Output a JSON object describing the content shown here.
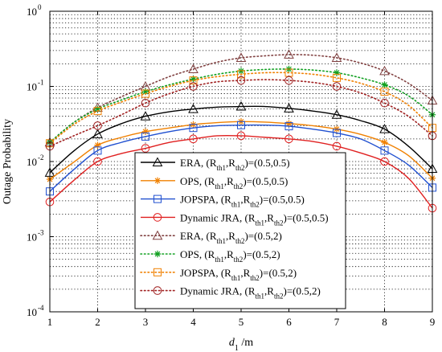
{
  "chart_data": {
    "type": "line",
    "xlabel": "d1 /m",
    "xlabel_main": "d",
    "xlabel_sub": "1",
    "xlabel_unit": " /m",
    "ylabel": "Outage Probability",
    "xlim": [
      1,
      9
    ],
    "ylim": [
      0.0001,
      1
    ],
    "yscale": "log",
    "grid": true,
    "legend_placement": "lower-center",
    "x_ticks": [
      "1",
      "2",
      "3",
      "4",
      "5",
      "6",
      "7",
      "8",
      "9"
    ],
    "y_ticks": [
      {
        "base": "10",
        "exp": "0",
        "value": 1
      },
      {
        "base": "10",
        "exp": "-1",
        "value": 0.1
      },
      {
        "base": "10",
        "exp": "-2",
        "value": 0.01
      },
      {
        "base": "10",
        "exp": "-3",
        "value": 0.001
      },
      {
        "base": "10",
        "exp": "-4",
        "value": 0.0001
      }
    ],
    "series": [
      {
        "name": "ERA",
        "params": "(0.5,0.5)",
        "color": "#000000",
        "style": "solid",
        "marker": "triangle",
        "x": [
          1,
          1.5,
          2,
          2.5,
          3,
          3.5,
          4,
          4.5,
          5,
          5.5,
          6,
          6.5,
          7,
          7.5,
          8,
          8.5,
          9
        ],
        "y": [
          0.0071,
          0.0138,
          0.0232,
          0.032,
          0.04,
          0.046,
          0.05,
          0.053,
          0.054,
          0.054,
          0.051,
          0.047,
          0.042,
          0.035,
          0.027,
          0.016,
          0.008
        ]
      },
      {
        "name": "OPS",
        "params": "(0.5,0.5)",
        "color": "#f08000",
        "style": "solid",
        "marker": "star",
        "x": [
          1,
          1.5,
          2,
          2.5,
          3,
          3.5,
          4,
          4.5,
          5,
          5.5,
          6,
          6.5,
          7,
          7.5,
          8,
          8.5,
          9
        ],
        "y": [
          0.0058,
          0.0098,
          0.0165,
          0.021,
          0.025,
          0.028,
          0.031,
          0.033,
          0.034,
          0.0335,
          0.032,
          0.03,
          0.027,
          0.023,
          0.018,
          0.012,
          0.006
        ]
      },
      {
        "name": "JOPSPA",
        "params": "(0.5,0.5)",
        "color": "#2050d0",
        "style": "solid",
        "marker": "square",
        "x": [
          1,
          1.5,
          2,
          2.5,
          3,
          3.5,
          4,
          4.5,
          5,
          5.5,
          6,
          6.5,
          7,
          7.5,
          8,
          8.5,
          9
        ],
        "y": [
          0.004,
          0.0078,
          0.014,
          0.018,
          0.0215,
          0.025,
          0.028,
          0.03,
          0.0305,
          0.0305,
          0.0295,
          0.027,
          0.024,
          0.02,
          0.014,
          0.009,
          0.0045
        ]
      },
      {
        "name": "Dynamic JRA",
        "params": "(0.5,0.5)",
        "color": "#e02020",
        "style": "solid",
        "marker": "circle",
        "x": [
          1,
          1.5,
          2,
          2.5,
          3,
          3.5,
          4,
          4.5,
          5,
          5.5,
          6,
          6.5,
          7,
          7.5,
          8,
          8.5,
          9
        ],
        "y": [
          0.0029,
          0.0056,
          0.01,
          0.0128,
          0.015,
          0.018,
          0.02,
          0.022,
          0.022,
          0.021,
          0.02,
          0.0185,
          0.016,
          0.013,
          0.01,
          0.006,
          0.0024
        ]
      },
      {
        "name": "ERA",
        "params": "(0.5,2)",
        "color": "#804040",
        "style": "dotted",
        "marker": "triangle",
        "x": [
          1,
          1.5,
          2,
          2.5,
          3,
          3.5,
          4,
          4.5,
          5,
          5.5,
          6,
          6.5,
          7,
          7.5,
          8,
          8.5,
          9
        ],
        "y": [
          0.018,
          0.033,
          0.052,
          0.073,
          0.1,
          0.135,
          0.17,
          0.21,
          0.24,
          0.255,
          0.265,
          0.26,
          0.24,
          0.205,
          0.16,
          0.11,
          0.065
        ]
      },
      {
        "name": "OPS",
        "params": "(0.5,2)",
        "color": "#10a020",
        "style": "dotted",
        "marker": "star",
        "x": [
          1,
          1.5,
          2,
          2.5,
          3,
          3.5,
          4,
          4.5,
          5,
          5.5,
          6,
          6.5,
          7,
          7.5,
          8,
          8.5,
          9
        ],
        "y": [
          0.018,
          0.033,
          0.05,
          0.066,
          0.085,
          0.105,
          0.125,
          0.145,
          0.16,
          0.168,
          0.17,
          0.165,
          0.152,
          0.13,
          0.105,
          0.075,
          0.042
        ]
      },
      {
        "name": "JOPSPA",
        "params": "(0.5,2)",
        "color": "#f08000",
        "style": "dotted",
        "marker": "square",
        "x": [
          1,
          1.5,
          2,
          2.5,
          3,
          3.5,
          4,
          4.5,
          5,
          5.5,
          6,
          6.5,
          7,
          7.5,
          8,
          8.5,
          9
        ],
        "y": [
          0.0175,
          0.031,
          0.047,
          0.062,
          0.08,
          0.1,
          0.12,
          0.135,
          0.145,
          0.152,
          0.152,
          0.145,
          0.13,
          0.11,
          0.085,
          0.056,
          0.028
        ]
      },
      {
        "name": "Dynamic JRA",
        "params": "(0.5,2)",
        "color": "#a02020",
        "style": "dotted",
        "marker": "circle",
        "x": [
          1,
          1.5,
          2,
          2.5,
          3,
          3.5,
          4,
          4.5,
          5,
          5.5,
          6,
          6.5,
          7,
          7.5,
          8,
          8.5,
          9
        ],
        "y": [
          0.016,
          0.022,
          0.03,
          0.042,
          0.06,
          0.08,
          0.1,
          0.115,
          0.12,
          0.123,
          0.12,
          0.113,
          0.1,
          0.082,
          0.06,
          0.04,
          0.022
        ]
      }
    ]
  }
}
